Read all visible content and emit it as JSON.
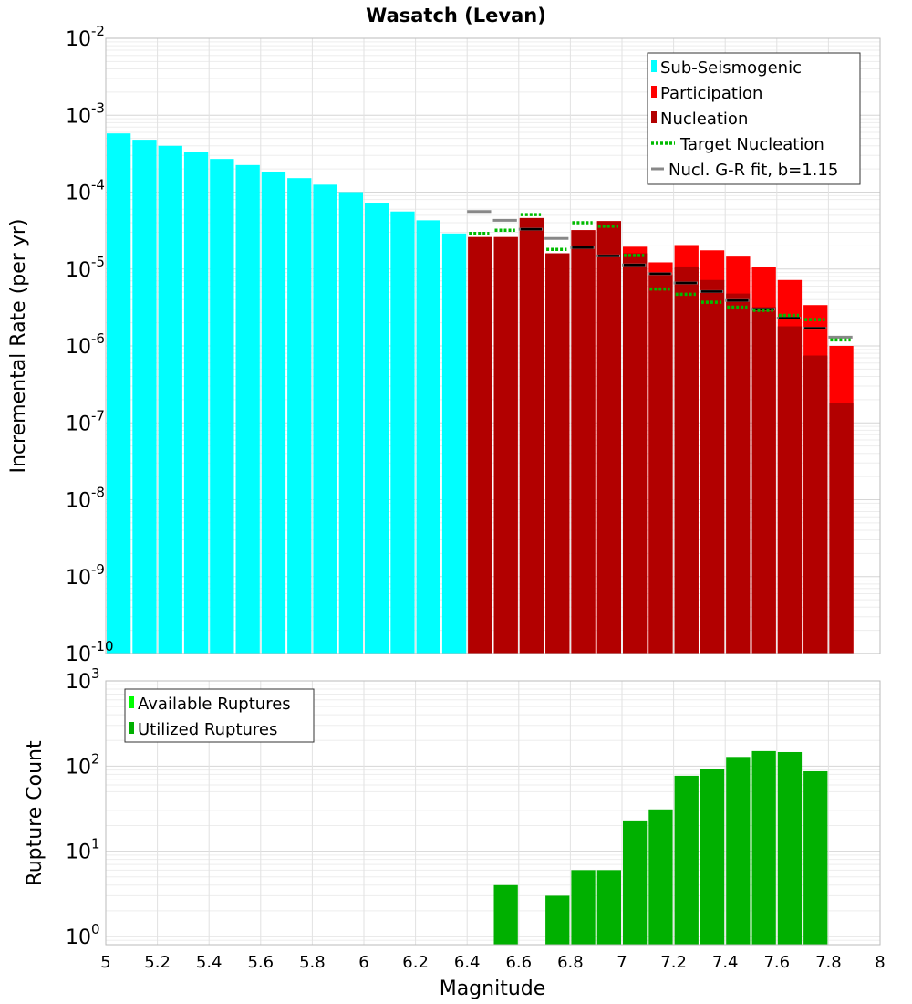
{
  "chart_data": [
    {
      "type": "bar",
      "title": "Wasatch (Levan)",
      "ylabel": "Incremental Rate (per yr)",
      "xlabel": "",
      "yscale": "log",
      "ylim": [
        1e-10,
        0.01
      ],
      "xlim": [
        5,
        8
      ],
      "bin_width": 0.1,
      "y_ticks": [
        {
          "base": "10",
          "exp": "-10"
        },
        {
          "base": "10",
          "exp": "-9"
        },
        {
          "base": "10",
          "exp": "-8"
        },
        {
          "base": "10",
          "exp": "-7"
        },
        {
          "base": "10",
          "exp": "-6"
        },
        {
          "base": "10",
          "exp": "-5"
        },
        {
          "base": "10",
          "exp": "-4"
        },
        {
          "base": "10",
          "exp": "-3"
        },
        {
          "base": "10",
          "exp": "-2"
        }
      ],
      "legend_position": "top-right",
      "legend": [
        {
          "label": "Sub-Seismogenic",
          "color": "#00ffff",
          "style": "bar"
        },
        {
          "label": "Participation",
          "color": "#ff0000",
          "style": "bar"
        },
        {
          "label": "Nucleation",
          "color": "#b20000",
          "style": "bar"
        },
        {
          "label": "Target Nucleation",
          "color": "#00bb00",
          "style": "dotted"
        },
        {
          "label": "Nucl. G-R fit, b=1.15",
          "color": "#888888",
          "style": "line"
        }
      ],
      "series": [
        {
          "name": "Sub-Seismogenic",
          "color": "#00ffff",
          "x": [
            5.05,
            5.15,
            5.25,
            5.35,
            5.45,
            5.55,
            5.65,
            5.75,
            5.85,
            5.95,
            6.05,
            6.15,
            6.25,
            6.35
          ],
          "values": [
            0.00058,
            0.00048,
            0.0004,
            0.00033,
            0.00027,
            0.000225,
            0.000185,
            0.000152,
            0.000125,
            0.0001,
            7.3e-05,
            5.6e-05,
            4.3e-05,
            2.9e-05
          ]
        },
        {
          "name": "Participation",
          "color": "#ff0000",
          "x": [
            6.45,
            6.55,
            6.65,
            6.75,
            6.85,
            6.95,
            7.05,
            7.15,
            7.25,
            7.35,
            7.45,
            7.55,
            7.65,
            7.75,
            7.85
          ],
          "values": [
            2.6e-05,
            2.6e-05,
            4.6e-05,
            1.6e-05,
            3.2e-05,
            4.2e-05,
            1.95e-05,
            1.22e-05,
            2.05e-05,
            1.75e-05,
            1.45e-05,
            1.05e-05,
            7.2e-06,
            3.4e-06,
            1e-06
          ]
        },
        {
          "name": "Nucleation",
          "color": "#b20000",
          "x": [
            6.45,
            6.55,
            6.65,
            6.75,
            6.85,
            6.95,
            7.05,
            7.15,
            7.25,
            7.35,
            7.45,
            7.55,
            7.65,
            7.75,
            7.85
          ],
          "values": [
            2.6e-05,
            2.6e-05,
            4.6e-05,
            1.6e-05,
            3.2e-05,
            4.2e-05,
            1.6e-05,
            8.5e-06,
            1.08e-05,
            7.2e-06,
            4.8e-06,
            3.2e-06,
            1.8e-06,
            7.5e-07,
            1.8e-07
          ]
        },
        {
          "name": "Target Nucleation",
          "color": "#00bb00",
          "x": [
            6.45,
            6.55,
            6.65,
            6.75,
            6.85,
            6.95,
            7.05,
            7.15,
            7.25,
            7.35,
            7.45,
            7.55,
            7.65,
            7.75,
            7.85
          ],
          "values": [
            2.9e-05,
            3.2e-05,
            5.1e-05,
            1.8e-05,
            4e-05,
            3.6e-05,
            1.5e-05,
            5.5e-06,
            4.7e-06,
            3.7e-06,
            3.2e-06,
            2.9e-06,
            2.5e-06,
            2.2e-06,
            1.2e-06
          ]
        },
        {
          "name": "Nucl. G-R fit, b=1.15",
          "color": "#888888",
          "x": [
            6.45,
            6.55,
            6.65,
            6.75,
            6.85,
            6.95,
            7.05,
            7.15,
            7.25,
            7.35,
            7.45,
            7.55,
            7.65,
            7.75,
            7.85
          ],
          "values": [
            5.6e-05,
            4.3e-05,
            3.3e-05,
            2.5e-05,
            1.9e-05,
            1.48e-05,
            1.13e-05,
            8.7e-06,
            6.6e-06,
            5.1e-06,
            3.9e-06,
            3e-06,
            2.3e-06,
            1.7e-06,
            1.3e-06
          ]
        },
        {
          "name": "Nucleation marker",
          "color": "#000000",
          "x": [
            6.65,
            6.85,
            6.95,
            7.05,
            7.15,
            7.25,
            7.35,
            7.45,
            7.55,
            7.65,
            7.75
          ],
          "values": [
            3.3e-05,
            1.9e-05,
            1.48e-05,
            1.13e-05,
            8.7e-06,
            6.6e-06,
            5.1e-06,
            3.9e-06,
            3e-06,
            2.3e-06,
            1.7e-06
          ]
        }
      ]
    },
    {
      "type": "bar",
      "title": "",
      "ylabel": "Rupture Count",
      "xlabel": "Magnitude",
      "yscale": "log",
      "ylim": [
        0.8,
        1000
      ],
      "xlim": [
        5,
        8
      ],
      "bin_width": 0.1,
      "x_ticks": [
        "5",
        "5.2",
        "5.4",
        "5.6",
        "5.8",
        "6",
        "6.2",
        "6.4",
        "6.6",
        "6.8",
        "7",
        "7.2",
        "7.4",
        "7.6",
        "7.8",
        "8"
      ],
      "y_ticks": [
        {
          "base": "10",
          "exp": "0"
        },
        {
          "base": "10",
          "exp": "1"
        },
        {
          "base": "10",
          "exp": "2"
        },
        {
          "base": "10",
          "exp": "3"
        }
      ],
      "legend_position": "top-left",
      "legend": [
        {
          "label": "Available Ruptures",
          "color": "#00ff00"
        },
        {
          "label": "Utilized Ruptures",
          "color": "#00b000"
        }
      ],
      "series": [
        {
          "name": "Utilized Ruptures",
          "color": "#00b000",
          "x": [
            6.55,
            6.75,
            6.85,
            6.95,
            7.05,
            7.15,
            7.25,
            7.35,
            7.45,
            7.55,
            7.65,
            7.75
          ],
          "values": [
            4,
            3,
            6,
            6,
            23,
            31,
            77,
            92,
            128,
            150,
            146,
            87
          ]
        }
      ]
    }
  ]
}
